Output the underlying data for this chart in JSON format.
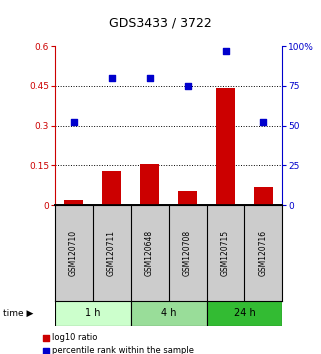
{
  "title": "GDS3433 / 3722",
  "samples": [
    "GSM120710",
    "GSM120711",
    "GSM120648",
    "GSM120708",
    "GSM120715",
    "GSM120716"
  ],
  "log10_ratio": [
    0.02,
    0.13,
    0.155,
    0.055,
    0.44,
    0.07
  ],
  "percentile_rank": [
    52,
    80,
    80,
    75,
    97,
    52
  ],
  "time_groups": [
    {
      "label": "1 h",
      "start": 0,
      "end": 2,
      "color": "#ccffcc"
    },
    {
      "label": "4 h",
      "start": 2,
      "end": 4,
      "color": "#99dd99"
    },
    {
      "label": "24 h",
      "start": 4,
      "end": 6,
      "color": "#33bb33"
    }
  ],
  "bar_color": "#cc0000",
  "scatter_color": "#0000cc",
  "left_ylabel_color": "#cc0000",
  "right_ylabel_color": "#0000cc",
  "ylim_left": [
    0,
    0.6
  ],
  "ylim_right": [
    0,
    100
  ],
  "yticks_left": [
    0,
    0.15,
    0.3,
    0.45,
    0.6
  ],
  "ytick_labels_left": [
    "0",
    "0.15",
    "0.3",
    "0.45",
    "0.6"
  ],
  "yticks_right": [
    0,
    25,
    50,
    75,
    100
  ],
  "ytick_labels_right": [
    "0",
    "25",
    "50",
    "75",
    "100%"
  ],
  "hlines": [
    0.15,
    0.3,
    0.45
  ],
  "bg_color": "#ffffff",
  "sample_box_color": "#cccccc",
  "fig_width": 3.21,
  "fig_height": 3.54,
  "dpi": 100
}
